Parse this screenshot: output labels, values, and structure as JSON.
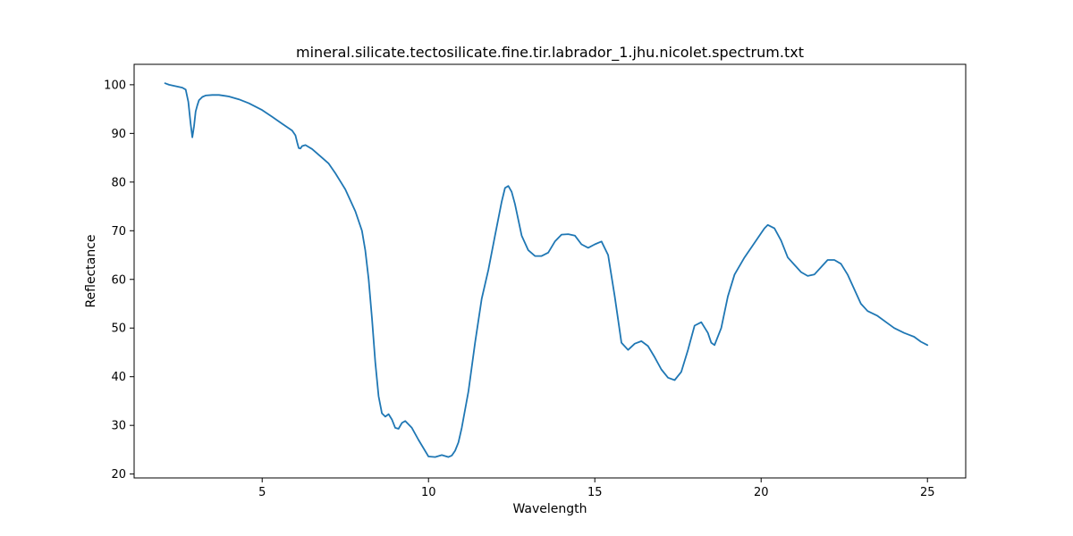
{
  "chart_data": {
    "type": "line",
    "title": "mineral.silicate.tectosilicate.fine.tir.labrador_1.jhu.nicolet.spectrum.txt",
    "xlabel": "Wavelength",
    "ylabel": "Reflectance",
    "xlim": [
      1.15,
      26.15
    ],
    "ylim": [
      19.2,
      104.2
    ],
    "xticks": [
      5,
      10,
      15,
      20,
      25
    ],
    "yticks": [
      20,
      30,
      40,
      50,
      60,
      70,
      80,
      90,
      100
    ],
    "grid": false,
    "legend": "none",
    "series": [
      {
        "color": "#1f77b4",
        "x": [
          2.08,
          2.2,
          2.4,
          2.6,
          2.7,
          2.78,
          2.85,
          2.9,
          2.95,
          3.0,
          3.05,
          3.1,
          3.2,
          3.3,
          3.5,
          3.7,
          4.0,
          4.3,
          4.6,
          5.0,
          5.3,
          5.6,
          5.9,
          6.0,
          6.05,
          6.1,
          6.15,
          6.2,
          6.3,
          6.5,
          6.8,
          7.0,
          7.2,
          7.5,
          7.8,
          8.0,
          8.1,
          8.2,
          8.3,
          8.4,
          8.5,
          8.6,
          8.7,
          8.8,
          8.9,
          9.0,
          9.1,
          9.2,
          9.3,
          9.5,
          9.7,
          10.0,
          10.2,
          10.4,
          10.6,
          10.7,
          10.8,
          10.9,
          11.0,
          11.2,
          11.4,
          11.6,
          11.8,
          12.0,
          12.2,
          12.3,
          12.4,
          12.5,
          12.6,
          12.8,
          13.0,
          13.2,
          13.4,
          13.6,
          13.8,
          14.0,
          14.2,
          14.4,
          14.6,
          14.8,
          15.0,
          15.2,
          15.4,
          15.6,
          15.8,
          16.0,
          16.2,
          16.4,
          16.6,
          16.8,
          17.0,
          17.2,
          17.4,
          17.6,
          17.8,
          18.0,
          18.2,
          18.4,
          18.5,
          18.6,
          18.8,
          19.0,
          19.2,
          19.5,
          19.8,
          20.0,
          20.1,
          20.2,
          20.4,
          20.6,
          20.8,
          21.0,
          21.2,
          21.4,
          21.6,
          21.8,
          22.0,
          22.2,
          22.4,
          22.6,
          22.8,
          23.0,
          23.2,
          23.5,
          23.8,
          24.0,
          24.3,
          24.6,
          24.8,
          25.0
        ],
        "y": [
          100.3,
          100.0,
          99.7,
          99.4,
          99.0,
          96.5,
          92.0,
          89.2,
          91.5,
          94.5,
          95.8,
          96.8,
          97.5,
          97.8,
          97.9,
          97.9,
          97.6,
          97.0,
          96.2,
          94.8,
          93.4,
          92.0,
          90.6,
          89.6,
          88.2,
          87.0,
          86.9,
          87.4,
          87.6,
          86.8,
          85.0,
          83.8,
          81.8,
          78.5,
          74.0,
          70.0,
          66.0,
          60.0,
          52.0,
          43.0,
          36.0,
          32.5,
          31.8,
          32.3,
          31.2,
          29.5,
          29.3,
          30.5,
          30.9,
          29.5,
          27.0,
          23.6,
          23.5,
          23.9,
          23.5,
          23.8,
          24.8,
          26.5,
          29.5,
          37.0,
          47.0,
          56.0,
          62.0,
          69.0,
          76.0,
          78.8,
          79.2,
          78.0,
          75.5,
          69.0,
          66.0,
          64.8,
          64.8,
          65.5,
          67.8,
          69.2,
          69.3,
          69.0,
          67.2,
          66.5,
          67.2,
          67.8,
          65.0,
          56.5,
          47.0,
          45.5,
          46.8,
          47.3,
          46.3,
          44.0,
          41.5,
          39.8,
          39.3,
          41.0,
          45.5,
          50.5,
          51.2,
          49.0,
          47.0,
          46.5,
          50.0,
          56.5,
          61.0,
          64.5,
          67.5,
          69.5,
          70.5,
          71.2,
          70.5,
          68.0,
          64.5,
          63.0,
          61.5,
          60.7,
          61.0,
          62.5,
          64.0,
          64.0,
          63.2,
          61.0,
          58.0,
          55.0,
          53.5,
          52.5,
          51.0,
          50.0,
          49.0,
          48.2,
          47.2,
          46.5
        ]
      }
    ]
  }
}
